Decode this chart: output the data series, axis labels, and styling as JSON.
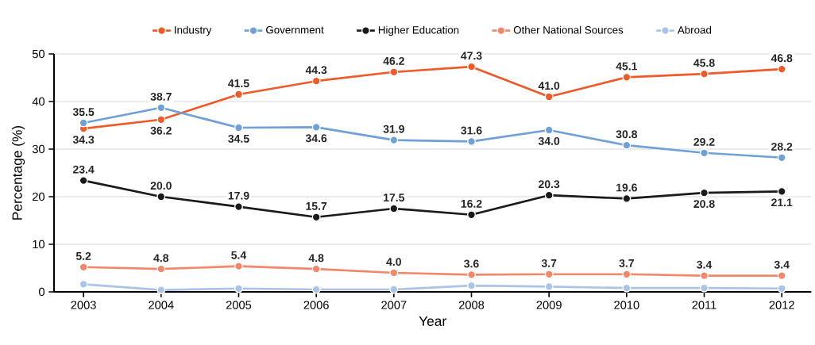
{
  "chart_data": {
    "type": "line",
    "xlabel": "Year",
    "ylabel": "Percentage (%)",
    "categories": [
      "2003",
      "2004",
      "2005",
      "2006",
      "2007",
      "2008",
      "2009",
      "2010",
      "2011",
      "2012"
    ],
    "series": [
      {
        "name": "Industry",
        "color": "#f05a28",
        "values": [
          34.3,
          36.2,
          41.5,
          44.3,
          46.2,
          47.3,
          41.0,
          45.1,
          45.8,
          46.8
        ],
        "value_labels": [
          "34.3",
          "36.2",
          "41.5",
          "44.3",
          "46.2",
          "47.3",
          "41.0",
          "45.1",
          "45.8",
          "46.8"
        ]
      },
      {
        "name": "Government",
        "color": "#6fa0d8",
        "values": [
          35.5,
          38.7,
          34.5,
          34.6,
          31.9,
          31.6,
          34.0,
          30.8,
          29.2,
          28.2
        ],
        "value_labels": [
          "35.5",
          "38.7",
          "34.5",
          "34.6",
          "31.9",
          "31.6",
          "34.0",
          "30.8",
          "29.2",
          "28.2"
        ]
      },
      {
        "name": "Higher Education",
        "color": "#1a1a1a",
        "values": [
          23.4,
          20.0,
          17.9,
          15.7,
          17.5,
          16.2,
          20.3,
          19.6,
          20.8,
          21.1
        ],
        "value_labels": [
          "23.4",
          "20.0",
          "17.9",
          "15.7",
          "17.5",
          "16.2",
          "20.3",
          "19.6",
          "20.8",
          "21.1"
        ]
      },
      {
        "name": "Other National Sources",
        "color": "#f4876a",
        "values": [
          5.2,
          4.8,
          5.4,
          4.8,
          4.0,
          3.6,
          3.7,
          3.7,
          3.4,
          3.4
        ],
        "value_labels": [
          "5.2",
          "4.8",
          "5.4",
          "4.8",
          "4.0",
          "3.6",
          "3.7",
          "3.7",
          "3.4",
          "3.4"
        ]
      },
      {
        "name": "Abroad",
        "color": "#a9c4e8",
        "values": [
          1.6,
          0.4,
          0.7,
          0.5,
          0.5,
          1.3,
          1.1,
          0.8,
          0.8,
          0.7
        ]
      }
    ],
    "ylim": [
      0,
      50
    ],
    "yticks": [
      0,
      10,
      20,
      30,
      40,
      50
    ],
    "grid": "y",
    "legend": "top",
    "marker": "circle",
    "line_style": "solid"
  }
}
